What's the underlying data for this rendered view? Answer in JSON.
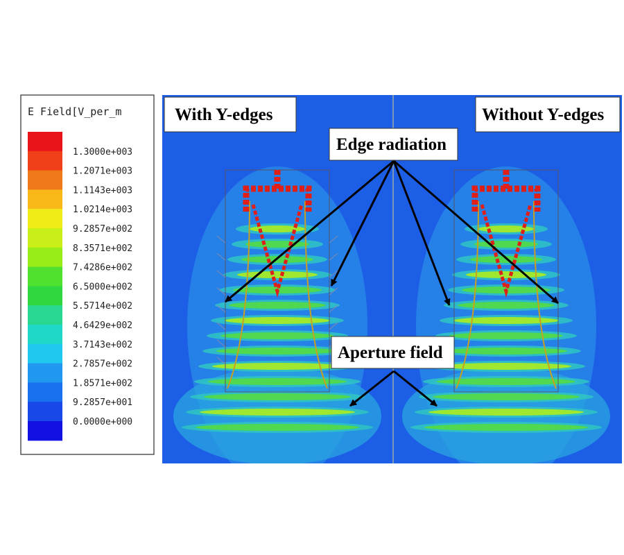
{
  "legend": {
    "title": "E Field[V_per_m",
    "labels": [
      "1.3000e+003",
      "1.2071e+003",
      "1.1143e+003",
      "1.0214e+003",
      "9.2857e+002",
      "8.3571e+002",
      "7.4286e+002",
      "6.5000e+002",
      "5.5714e+002",
      "4.6429e+002",
      "3.7143e+002",
      "2.7857e+002",
      "1.8571e+002",
      "9.2857e+001",
      "0.0000e+000"
    ]
  },
  "panels": [
    {
      "label": "With Y-edges"
    },
    {
      "label": "Without Y-edges"
    }
  ],
  "annotations": [
    {
      "text": "Edge radiation"
    },
    {
      "text": "Aperture field"
    }
  ]
}
